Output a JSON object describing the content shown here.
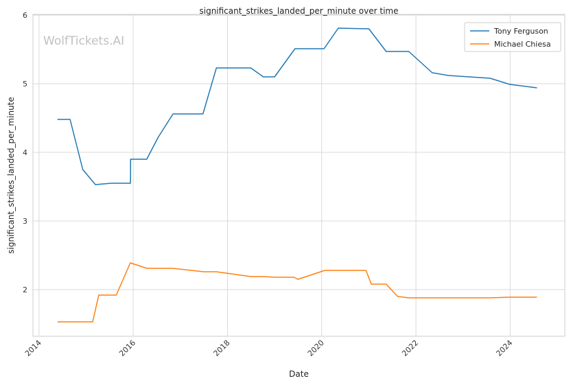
{
  "chart_data": {
    "type": "line",
    "title": "significant_strikes_landed_per_minute over time",
    "xlabel": "Date",
    "ylabel": "significant_strikes_landed_per_minute",
    "watermark": "WolfTickets.AI",
    "x_is_date": true,
    "xlim": [
      "2013-11-15",
      "2025-02-28"
    ],
    "ylim": [
      1.32,
      6.01
    ],
    "xticks": [
      "2014",
      "2016",
      "2018",
      "2020",
      "2022",
      "2024"
    ],
    "yticks": [
      2,
      3,
      4,
      5,
      6
    ],
    "grid": true,
    "legend_position": "upper right",
    "series": [
      {
        "name": "Tony Ferguson",
        "color": "#1f77b4",
        "x": [
          "2014-05-24",
          "2014-08-30",
          "2014-12-06",
          "2015-03-14",
          "2015-07-15",
          "2015-12-11",
          "2015-12-12",
          "2016-04-15",
          "2016-07-13",
          "2016-11-05",
          "2017-06-25",
          "2017-10-07",
          "2018-07-01",
          "2018-10-06",
          "2019-01-01",
          "2019-06-08",
          "2020-01-19",
          "2020-05-09",
          "2021-01-01",
          "2021-05-15",
          "2021-11-06",
          "2022-05-07",
          "2022-09-10",
          "2023-07-29",
          "2023-12-30",
          "2024-07-27"
        ],
        "values": [
          4.48,
          4.48,
          3.75,
          3.53,
          3.55,
          3.55,
          3.9,
          3.9,
          4.22,
          4.56,
          4.56,
          5.23,
          5.23,
          5.1,
          5.1,
          5.51,
          5.51,
          5.81,
          5.8,
          5.47,
          5.47,
          5.16,
          5.12,
          5.08,
          4.99,
          4.94
        ]
      },
      {
        "name": "Michael Chiesa",
        "color": "#ff7f0e",
        "x": [
          "2014-05-24",
          "2014-11-01",
          "2015-02-21",
          "2015-04-09",
          "2015-08-23",
          "2015-12-10",
          "2016-04-16",
          "2016-11-05",
          "2017-07-01",
          "2017-10-07",
          "2018-07-01",
          "2018-10-06",
          "2019-01-01",
          "2019-06-01",
          "2019-06-30",
          "2020-01-25",
          "2020-12-10",
          "2021-01-20",
          "2021-05-15",
          "2021-08-12",
          "2021-11-06",
          "2022-09-10",
          "2023-07-29",
          "2023-12-30",
          "2024-07-27"
        ],
        "values": [
          1.53,
          1.53,
          1.53,
          1.92,
          1.92,
          2.39,
          2.31,
          2.31,
          2.26,
          2.26,
          2.19,
          2.19,
          2.18,
          2.18,
          2.15,
          2.28,
          2.28,
          2.08,
          2.08,
          1.9,
          1.88,
          1.88,
          1.88,
          1.89,
          1.89
        ]
      }
    ]
  }
}
